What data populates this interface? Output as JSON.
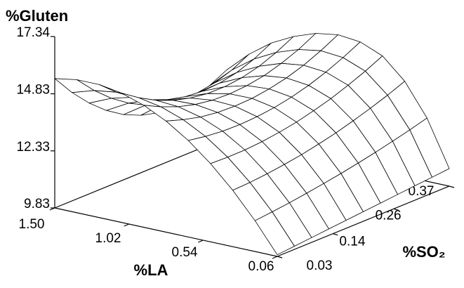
{
  "chart_data": {
    "type": "surface",
    "title": "%Gluten",
    "x_label": "%LA",
    "y_label": "%SO₂",
    "x": [
      1.5,
      1.356,
      1.212,
      1.068,
      0.924,
      0.78,
      0.636,
      0.492,
      0.348,
      0.204,
      0.06
    ],
    "y": [
      0.03,
      0.064,
      0.098,
      0.132,
      0.166,
      0.2,
      0.234,
      0.268,
      0.302,
      0.336,
      0.37
    ],
    "z": [
      [
        15.5,
        14.58,
        13.81,
        13.18,
        12.69,
        12.35,
        12.15,
        12.1,
        12.19,
        12.42,
        12.8
      ],
      [
        15.66,
        14.88,
        14.23,
        13.71,
        13.32,
        13.06,
        12.93,
        12.93,
        13.06,
        13.31,
        13.7
      ],
      [
        15.66,
        15.02,
        14.49,
        14.07,
        13.77,
        13.59,
        13.52,
        13.57,
        13.73,
        14.01,
        14.4
      ],
      [
        15.5,
        14.99,
        14.57,
        14.26,
        14.05,
        13.94,
        13.93,
        14.02,
        14.21,
        14.51,
        14.9
      ],
      [
        15.18,
        14.8,
        14.5,
        14.29,
        14.17,
        14.14,
        14.19,
        14.32,
        14.55,
        14.85,
        15.25
      ],
      [
        14.7,
        14.45,
        14.26,
        14.15,
        14.12,
        14.15,
        14.26,
        14.43,
        14.68,
        15.01,
        15.4
      ],
      [
        14.06,
        13.93,
        13.85,
        13.83,
        13.87,
        13.96,
        14.11,
        14.32,
        14.59,
        14.92,
        15.3
      ],
      [
        13.26,
        13.23,
        13.24,
        13.3,
        13.4,
        13.54,
        13.73,
        13.95,
        14.23,
        14.54,
        14.9
      ],
      [
        12.3,
        12.34,
        12.41,
        12.51,
        12.63,
        12.79,
        12.97,
        13.19,
        13.43,
        13.7,
        14.0
      ],
      [
        11.18,
        11.26,
        11.35,
        11.46,
        11.58,
        11.71,
        11.86,
        12.02,
        12.2,
        12.39,
        12.6
      ],
      [
        9.9,
        9.97,
        10.04,
        10.11,
        10.18,
        10.25,
        10.32,
        10.39,
        10.46,
        10.53,
        10.6
      ]
    ],
    "xlim": [
      1.5,
      0.06
    ],
    "xticks": [
      {
        "value": 1.5,
        "label": "1.50"
      },
      1.02,
      0.54,
      0.06
    ],
    "ylim": [
      0.03,
      0.37
    ],
    "yticks": [
      0.03,
      0.14,
      0.26,
      0.37
    ],
    "zlim": [
      9.83,
      17.34
    ],
    "zticks": [
      9.83,
      12.33,
      14.83,
      17.34
    ],
    "color": "#ffffff",
    "line_color": "#000000"
  }
}
